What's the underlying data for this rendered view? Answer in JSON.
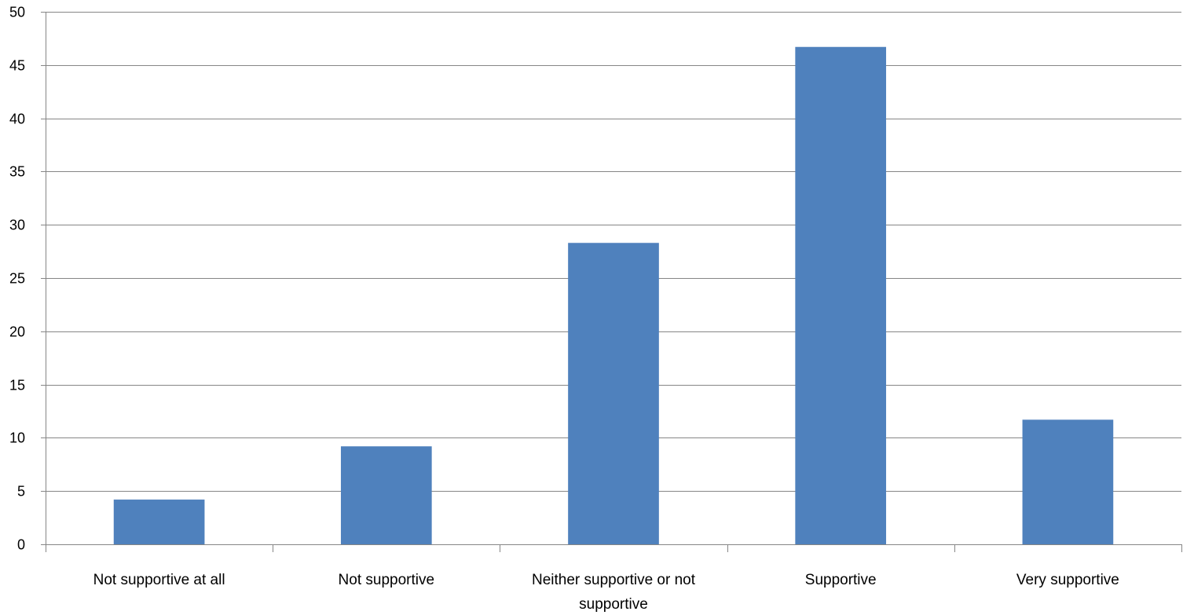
{
  "chart_data": {
    "type": "bar",
    "title": "",
    "xlabel": "",
    "ylabel": "",
    "categories": [
      [
        "Not supportive at all"
      ],
      [
        "Not supportive"
      ],
      [
        "Neither supportive or not",
        "supportive"
      ],
      [
        "Supportive"
      ],
      [
        "Very supportive"
      ]
    ],
    "values": [
      4.2,
      9.2,
      28.3,
      46.7,
      11.7
    ],
    "ylim": [
      0,
      50
    ],
    "yticks": [
      0,
      5,
      10,
      15,
      20,
      25,
      30,
      35,
      40,
      45,
      50
    ],
    "grid": true,
    "legend": "none",
    "bar_color": "#4F81BD"
  }
}
